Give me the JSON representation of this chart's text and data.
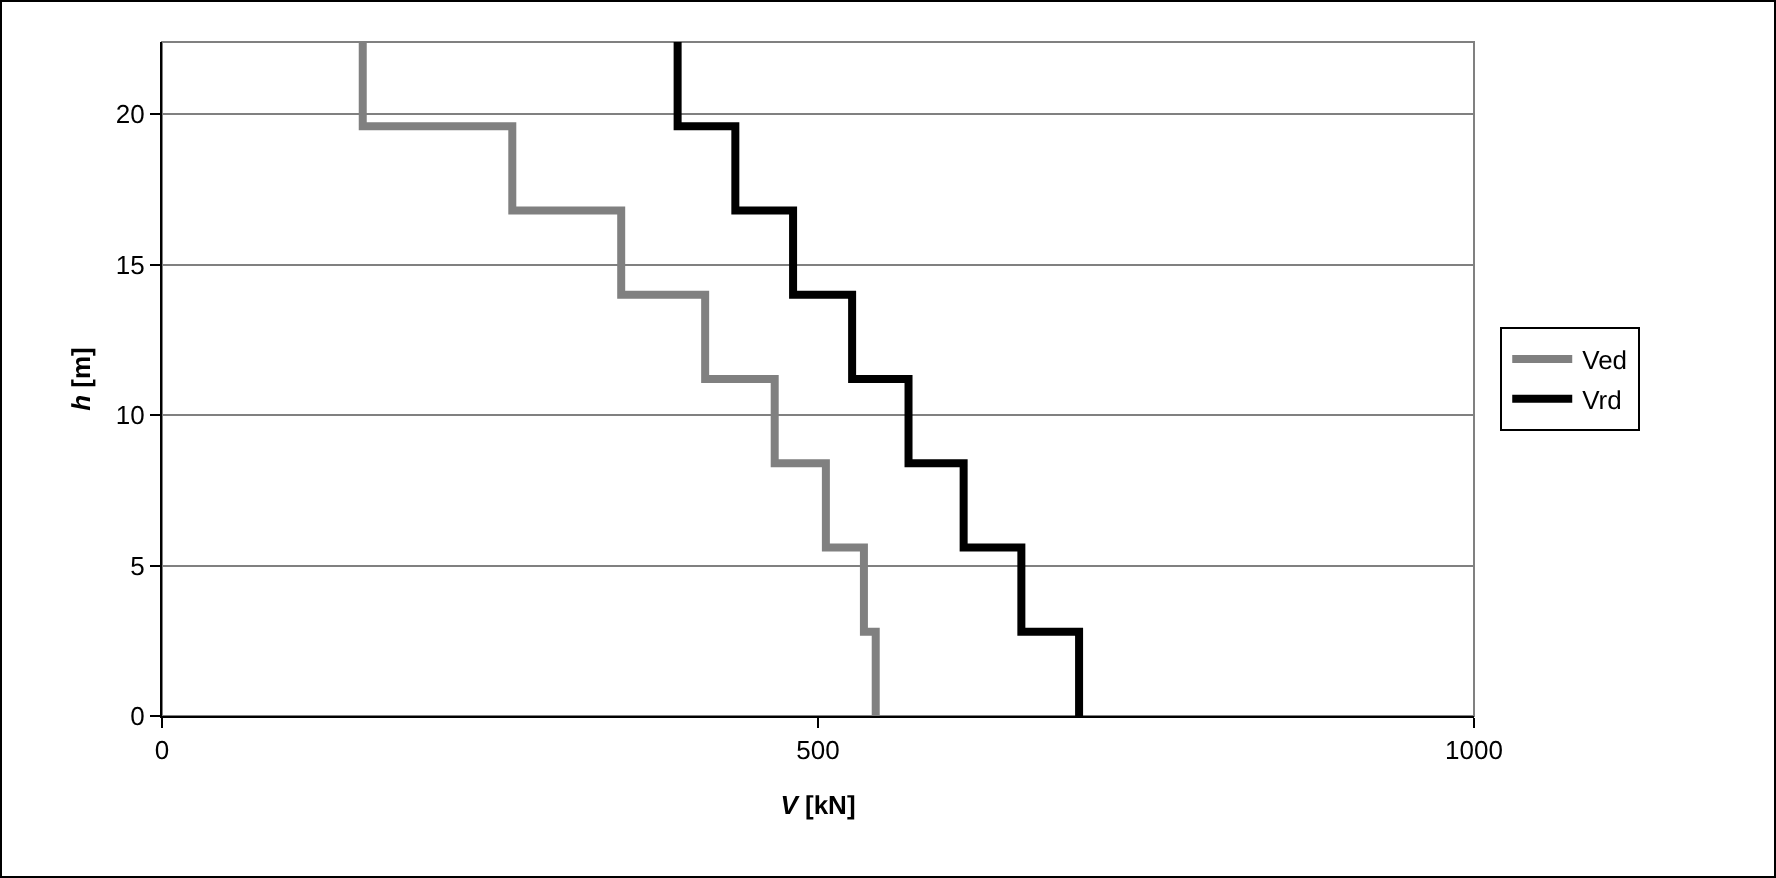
{
  "chart_data": {
    "type": "line",
    "xlabel": "V [kN]",
    "ylabel": "h [m]",
    "xlim": [
      0,
      1000
    ],
    "xticks": [
      0,
      500,
      1000
    ],
    "ylim": [
      0,
      22.4
    ],
    "yticks": [
      0,
      5,
      10,
      15,
      20
    ],
    "grid": "y",
    "legend": "right",
    "marker": "none",
    "line_style": "solid",
    "series": [
      {
        "name": "Ved",
        "color": "#808080",
        "x": [
          153,
          153,
          267,
          267,
          350,
          350,
          414,
          414,
          467,
          467,
          506,
          506,
          535,
          535,
          544,
          544
        ],
        "values": [
          22.4,
          19.6,
          19.6,
          16.8,
          16.8,
          14,
          14,
          11.2,
          11.2,
          8.4,
          8.4,
          5.6,
          5.6,
          2.8,
          2.8,
          0
        ]
      },
      {
        "name": "Vrd",
        "color": "#000000",
        "x": [
          393,
          393,
          437,
          437,
          481,
          481,
          526,
          526,
          569,
          569,
          611,
          611,
          655,
          655,
          699,
          699
        ],
        "values": [
          22.4,
          19.6,
          19.6,
          16.8,
          16.8,
          14,
          14,
          11.2,
          11.2,
          8.4,
          8.4,
          5.6,
          5.6,
          2.8,
          2.8,
          0
        ]
      }
    ]
  }
}
